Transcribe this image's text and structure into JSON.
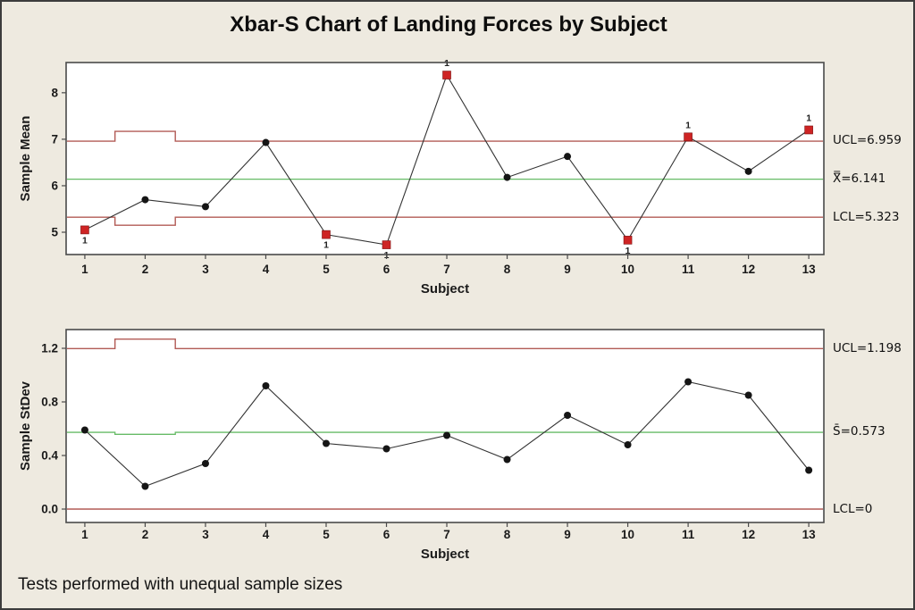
{
  "figure": {
    "title": "Xbar-S Chart of Landing Forces by Subject",
    "footer_note": "Tests performed with unequal sample sizes"
  },
  "colors": {
    "background": "#EEEAE0",
    "plot_background": "#FFFFFF",
    "frame": "#4A4A4A",
    "limit_line_red": "#B25B56",
    "center_line_green": "#66BB66",
    "series_line": "#333333",
    "point_fill": "#151515",
    "ooc_fill": "#CE2424",
    "ooc_stroke": "#7C1010",
    "text": "#1A1A1A"
  },
  "chart_data": [
    {
      "id": "xbar",
      "type": "line",
      "ylabel": "Sample Mean",
      "xlabel": "Subject",
      "x": [
        1,
        2,
        3,
        4,
        5,
        6,
        7,
        8,
        9,
        10,
        11,
        12,
        13
      ],
      "values": [
        5.05,
        5.7,
        5.55,
        6.93,
        4.95,
        4.73,
        8.38,
        6.18,
        6.63,
        4.83,
        7.05,
        6.31,
        7.2
      ],
      "out_of_control": [
        {
          "x": 1,
          "label": "1",
          "label_pos": "below"
        },
        {
          "x": 5,
          "label": "1",
          "label_pos": "below"
        },
        {
          "x": 6,
          "label": "1",
          "label_pos": "below"
        },
        {
          "x": 7,
          "label": "1",
          "label_pos": "above"
        },
        {
          "x": 10,
          "label": "1",
          "label_pos": "below"
        },
        {
          "x": 11,
          "label": "1",
          "label_pos": "above"
        },
        {
          "x": 13,
          "label": "1",
          "label_pos": "above"
        }
      ],
      "control_lines": {
        "ucl": {
          "value": 6.959,
          "value_subject2": 7.17,
          "label": "UCL=6.959"
        },
        "center": {
          "value": 6.141,
          "value_subject2": 6.141,
          "label": "X̿=6.141"
        },
        "lcl": {
          "value": 5.323,
          "value_subject2": 5.15,
          "label": "LCL=5.323"
        }
      },
      "step_range": [
        1.5,
        2.5
      ],
      "xticks": [
        "1",
        "2",
        "3",
        "4",
        "5",
        "6",
        "7",
        "8",
        "9",
        "10",
        "11",
        "12",
        "13"
      ],
      "yticks": [
        {
          "v": 5,
          "label": "5"
        },
        {
          "v": 6,
          "label": "6"
        },
        {
          "v": 7,
          "label": "7"
        },
        {
          "v": 8,
          "label": "8"
        }
      ],
      "xlim": [
        0.69,
        13.25
      ],
      "ylim": [
        4.52,
        8.65
      ],
      "grid": false,
      "legend": "none"
    },
    {
      "id": "s",
      "type": "line",
      "ylabel": "Sample StDev",
      "xlabel": "Subject",
      "x": [
        1,
        2,
        3,
        4,
        5,
        6,
        7,
        8,
        9,
        10,
        11,
        12,
        13
      ],
      "values": [
        0.59,
        0.17,
        0.34,
        0.92,
        0.49,
        0.45,
        0.55,
        0.37,
        0.7,
        0.48,
        0.95,
        0.85,
        0.29
      ],
      "out_of_control": [],
      "control_lines": {
        "ucl": {
          "value": 1.198,
          "value_subject2": 1.269,
          "label": "UCL=1.198"
        },
        "center": {
          "value": 0.573,
          "value_subject2": 0.558,
          "label": "S̄=0.573"
        },
        "lcl": {
          "value": 0,
          "value_subject2": 0,
          "label": "LCL=0"
        }
      },
      "step_range": [
        1.5,
        2.5
      ],
      "xticks": [
        "1",
        "2",
        "3",
        "4",
        "5",
        "6",
        "7",
        "8",
        "9",
        "10",
        "11",
        "12",
        "13"
      ],
      "yticks": [
        {
          "v": 0,
          "label": "0.0"
        },
        {
          "v": 0.4,
          "label": "0.4"
        },
        {
          "v": 0.8,
          "label": "0.8"
        },
        {
          "v": 1.2,
          "label": "1.2"
        }
      ],
      "xlim": [
        0.69,
        13.25
      ],
      "ylim": [
        -0.1,
        1.34
      ],
      "grid": false,
      "legend": "none"
    }
  ]
}
